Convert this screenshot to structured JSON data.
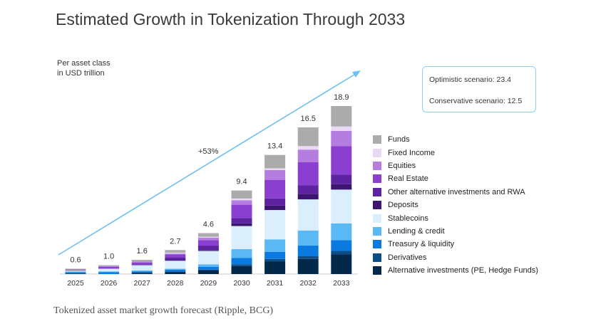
{
  "chart_data": {
    "type": "bar",
    "stacked": true,
    "title": "Estimated Growth in Tokenization Through 2033",
    "ylabel": "Per asset class in USD trillion",
    "ylabel_lines": [
      "Per asset class",
      "in USD trillion"
    ],
    "categories": [
      "2025",
      "2026",
      "2027",
      "2028",
      "2029",
      "2030",
      "2031",
      "2032",
      "2033"
    ],
    "totals": [
      "0.6",
      "1.0",
      "1.6",
      "2.7",
      "4.6",
      "9.4",
      "13.4",
      "16.5",
      "18.9"
    ],
    "growth_annotation": "+53%",
    "scenarios": [
      "Optimistic scenario: 23.4",
      "Conservative scenario: 12.5"
    ],
    "legend_position": "right",
    "series": [
      {
        "name": "Alternative investments (PE, Hedge Funds)",
        "color": "#03294a",
        "values": [
          0,
          0,
          0.1,
          0.2,
          0.4,
          0.9,
          1.4,
          1.7,
          2.2
        ]
      },
      {
        "name": "Derivatives",
        "color": "#0b4d85",
        "values": [
          0.1,
          0,
          0.1,
          0.1,
          0.1,
          0.2,
          0.3,
          0.3,
          0.4
        ]
      },
      {
        "name": "Treasury & liquidity",
        "color": "#0a7ae0",
        "values": [
          0.1,
          0.2,
          0.1,
          0.2,
          0.3,
          0.7,
          0.8,
          1.2,
          1.2
        ]
      },
      {
        "name": "Lending & credit",
        "color": "#5ab9f5",
        "values": [
          0.1,
          0.1,
          0.1,
          0.1,
          0.3,
          1.0,
          1.4,
          1.7,
          1.9
        ]
      },
      {
        "name": "Stablecoins",
        "color": "#dbeefc",
        "values": [
          0.1,
          0.3,
          0.6,
          0.9,
          1.5,
          2.6,
          3.3,
          3.5,
          3.8
        ]
      },
      {
        "name": "Deposits",
        "color": "#3b1570",
        "values": [
          0,
          0,
          0,
          0.1,
          0.1,
          0.3,
          0.5,
          0.6,
          0.6
        ]
      },
      {
        "name": "Other alternative investments and RWA",
        "color": "#5e23a0",
        "values": [
          0,
          0,
          0.1,
          0.3,
          0.5,
          0.6,
          0.8,
          1.0,
          1.1
        ]
      },
      {
        "name": "Real Estate",
        "color": "#8a3fd0",
        "values": [
          0.1,
          0.2,
          0.2,
          0.3,
          0.6,
          1.5,
          2.1,
          2.6,
          3.2
        ]
      },
      {
        "name": "Equities",
        "color": "#b57de0",
        "values": [
          0,
          0.1,
          0.1,
          0.1,
          0.3,
          0.5,
          1.1,
          1.4,
          1.7
        ]
      },
      {
        "name": "Fixed Income",
        "color": "#e8d9f5",
        "values": [
          0,
          0,
          0,
          0.1,
          0.1,
          0.2,
          0.2,
          0.4,
          0.5
        ]
      },
      {
        "name": "Funds",
        "color": "#ababab",
        "values": [
          0.1,
          0.1,
          0.2,
          0.3,
          0.4,
          0.9,
          1.5,
          2.1,
          2.3
        ]
      }
    ],
    "ylim": [
      0,
      18.9
    ],
    "grid": false
  },
  "caption": "Tokenized asset market growth forecast (Ripple, BCG)"
}
